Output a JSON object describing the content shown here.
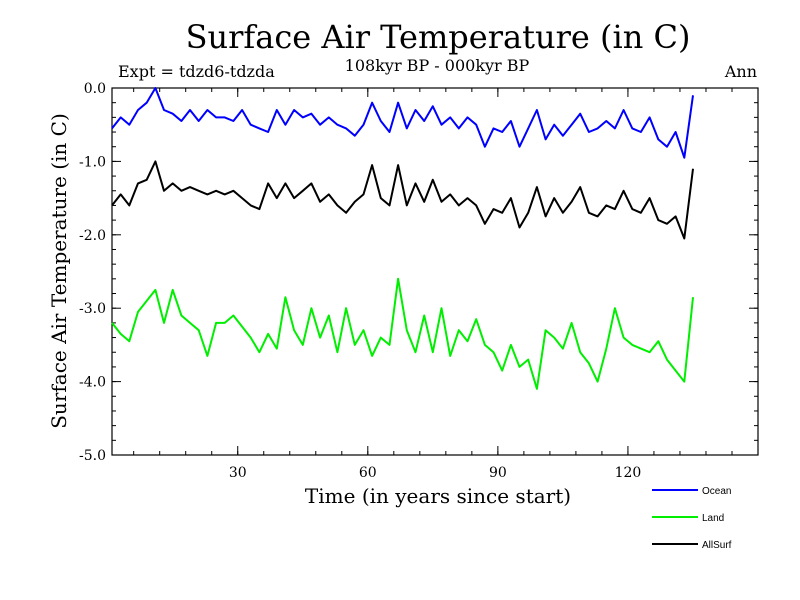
{
  "chart_data": {
    "type": "line",
    "title": "Surface Air Temperature (in C)",
    "subtitle": "108kyr BP - 000kyr BP",
    "experiment_label": "Expt = tdzd6-tdzda",
    "season_label": "Ann",
    "xlabel": "Time (in years since start)",
    "ylabel": "Surface Air Temperature (in C)",
    "xlim": [
      1,
      150
    ],
    "ylim": [
      -5.0,
      0.0
    ],
    "x_ticks": [
      30,
      60,
      90,
      120
    ],
    "x_tick_labels": [
      "30",
      "60",
      "90",
      "120"
    ],
    "y_ticks": [
      0.0,
      -1.0,
      -2.0,
      -3.0,
      -4.0,
      -5.0
    ],
    "y_tick_labels": [
      "0.0",
      "-1.0",
      "-2.0",
      "-3.0",
      "-4.0",
      "-5.0"
    ],
    "legend_position": "bottom-right, outside plot",
    "series": [
      {
        "name": "Ocean",
        "color": "#0000ff",
        "x_start": 1,
        "x_step": 2,
        "values": [
          -0.55,
          -0.4,
          -0.5,
          -0.3,
          -0.2,
          -0.0,
          -0.3,
          -0.35,
          -0.45,
          -0.3,
          -0.45,
          -0.3,
          -0.4,
          -0.4,
          -0.45,
          -0.3,
          -0.5,
          -0.55,
          -0.6,
          -0.3,
          -0.5,
          -0.3,
          -0.4,
          -0.35,
          -0.5,
          -0.4,
          -0.5,
          -0.55,
          -0.65,
          -0.5,
          -0.2,
          -0.45,
          -0.6,
          -0.2,
          -0.55,
          -0.3,
          -0.45,
          -0.25,
          -0.5,
          -0.4,
          -0.55,
          -0.4,
          -0.5,
          -0.8,
          -0.55,
          -0.6,
          -0.45,
          -0.8,
          -0.55,
          -0.3,
          -0.7,
          -0.5,
          -0.65,
          -0.5,
          -0.35,
          -0.6,
          -0.55,
          -0.45,
          -0.55,
          -0.3,
          -0.55,
          -0.6,
          -0.4,
          -0.7,
          -0.8,
          -0.6,
          -0.95,
          -0.1
        ]
      },
      {
        "name": "Land",
        "color": "#00ee00",
        "x_start": 1,
        "x_step": 2,
        "values": [
          -3.2,
          -3.35,
          -3.45,
          -3.05,
          -2.9,
          -2.75,
          -3.2,
          -2.75,
          -3.1,
          -3.2,
          -3.3,
          -3.65,
          -3.2,
          -3.2,
          -3.1,
          -3.25,
          -3.4,
          -3.6,
          -3.35,
          -3.55,
          -2.85,
          -3.3,
          -3.5,
          -3.0,
          -3.4,
          -3.1,
          -3.6,
          -3.0,
          -3.5,
          -3.3,
          -3.65,
          -3.4,
          -3.5,
          -2.6,
          -3.3,
          -3.6,
          -3.1,
          -3.6,
          -3.0,
          -3.65,
          -3.3,
          -3.45,
          -3.15,
          -3.5,
          -3.6,
          -3.85,
          -3.5,
          -3.8,
          -3.7,
          -4.1,
          -3.3,
          -3.4,
          -3.55,
          -3.2,
          -3.6,
          -3.75,
          -4.0,
          -3.55,
          -3.0,
          -3.4,
          -3.5,
          -3.55,
          -3.6,
          -3.45,
          -3.7,
          -3.85,
          -4.0,
          -2.85
        ]
      },
      {
        "name": "AllSurf",
        "color": "#000000",
        "x_start": 1,
        "x_step": 2,
        "values": [
          -1.6,
          -1.45,
          -1.6,
          -1.3,
          -1.25,
          -1.0,
          -1.4,
          -1.3,
          -1.4,
          -1.35,
          -1.4,
          -1.45,
          -1.4,
          -1.45,
          -1.4,
          -1.5,
          -1.6,
          -1.65,
          -1.3,
          -1.5,
          -1.3,
          -1.5,
          -1.4,
          -1.3,
          -1.55,
          -1.45,
          -1.6,
          -1.7,
          -1.55,
          -1.45,
          -1.05,
          -1.5,
          -1.6,
          -1.05,
          -1.6,
          -1.3,
          -1.55,
          -1.25,
          -1.55,
          -1.45,
          -1.6,
          -1.5,
          -1.6,
          -1.85,
          -1.65,
          -1.7,
          -1.5,
          -1.9,
          -1.7,
          -1.35,
          -1.75,
          -1.5,
          -1.7,
          -1.55,
          -1.35,
          -1.7,
          -1.75,
          -1.6,
          -1.65,
          -1.4,
          -1.65,
          -1.7,
          -1.5,
          -1.8,
          -1.85,
          -1.75,
          -2.05,
          -1.1
        ]
      }
    ]
  }
}
